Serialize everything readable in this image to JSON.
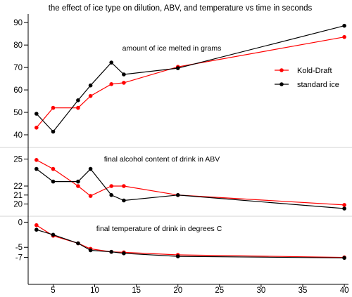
{
  "colors": {
    "kold_draft": "#ff0000",
    "standard_ice": "#000000",
    "axis": "#000000",
    "separator": "#d3d3d3"
  },
  "chart_data": {
    "type": "line",
    "title": "the effect of ice type on dilution, ABV, and temperature vs time in seconds",
    "grid": false,
    "legend": {
      "placement": "right, inside top panel",
      "entries": [
        "Kold-Draft",
        "standard ice"
      ]
    },
    "x_axis": {
      "range": [
        2,
        40.5
      ],
      "ticks": [
        5,
        10,
        15,
        20,
        25,
        30,
        35,
        40
      ],
      "tick_labels": [
        "5",
        "10",
        "15",
        "20",
        "25",
        "30",
        "35",
        "40"
      ]
    },
    "x": [
      3,
      5,
      8,
      9.5,
      12,
      13.5,
      20,
      40
    ],
    "panels": [
      {
        "annotation": "amount of ice melted in grams",
        "ylim": [
          40,
          91
        ],
        "yticks": [
          40,
          50,
          60,
          70,
          80,
          90
        ],
        "ytick_labels": [
          "40",
          "50",
          "60",
          "70",
          "80",
          "90"
        ],
        "series": [
          {
            "name": "Kold-Draft",
            "values": [
              43.2,
              52,
              52,
              57.3,
              62.6,
              63.2,
              70.3,
              83.6
            ]
          },
          {
            "name": "standard ice",
            "values": [
              49.4,
              41.4,
              55.4,
              62,
              72.2,
              66.9,
              69.7,
              88.6
            ]
          }
        ]
      },
      {
        "annotation": "final alcohol content of drink in ABV",
        "ylim": [
          19.5,
          25.2
        ],
        "yticks": [
          20,
          21,
          22,
          25
        ],
        "ytick_labels": [
          "20",
          "21",
          "22",
          "25"
        ],
        "series": [
          {
            "name": "Kold-Draft",
            "values": [
              24.9,
              23.9,
              22,
              20.9,
              22,
              22,
              21,
              19.9
            ]
          },
          {
            "name": "standard ice",
            "values": [
              23.9,
              22.5,
              22.5,
              23.9,
              21,
              20.4,
              21,
              19.5
            ]
          }
        ]
      },
      {
        "annotation": "final temperature of drink in degrees C",
        "ylim": [
          -7.2,
          0.2
        ],
        "yticks": [
          0,
          -5,
          -7
        ],
        "ytick_labels": [
          "0",
          "-5",
          "-7"
        ],
        "series": [
          {
            "name": "Kold-Draft",
            "values": [
              -0.6,
              -2.7,
              -4.2,
              -5.3,
              -5.9,
              -6.0,
              -6.5,
              -7.0
            ]
          },
          {
            "name": "standard ice",
            "values": [
              -1.5,
              -2.5,
              -4.2,
              -5.6,
              -5.9,
              -6.2,
              -6.8,
              -7.1
            ]
          }
        ]
      }
    ]
  }
}
